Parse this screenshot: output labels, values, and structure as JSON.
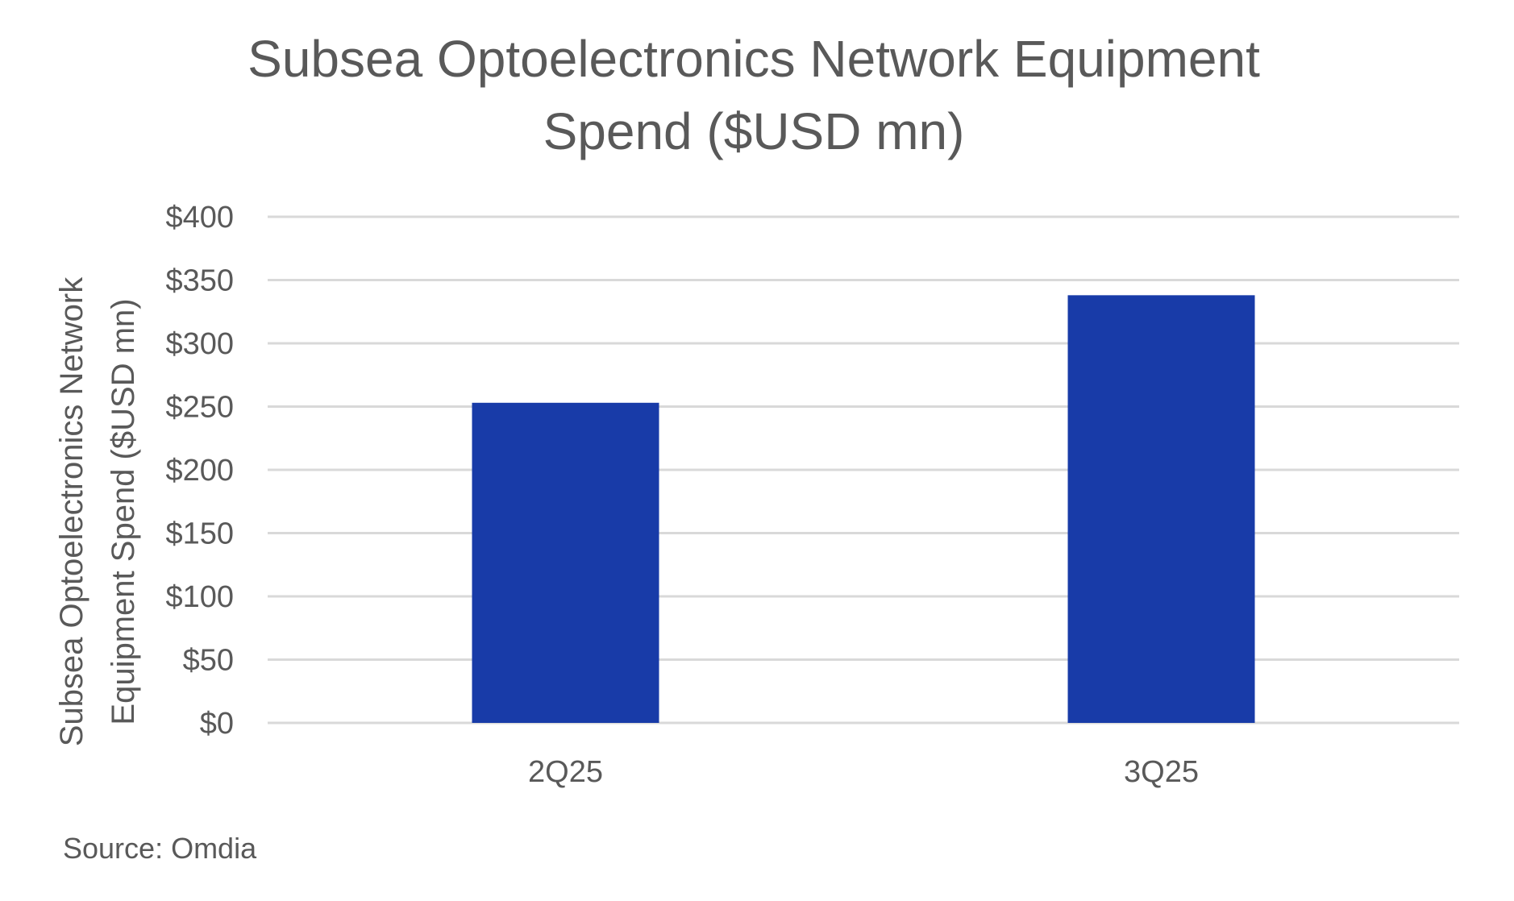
{
  "colors": {
    "bar": "#183BA8",
    "text": "#595959",
    "grid": "#d9d9d9",
    "background": "#ffffff"
  },
  "chart_data": {
    "type": "bar",
    "title_lines": [
      "Subsea Optoelectronics Network Equipment",
      "Spend ($USD mn)"
    ],
    "ylabel_lines": [
      "Subsea Optoelectronics Network",
      "Equipment Spend ($USD mn)"
    ],
    "xlabel": "",
    "categories": [
      "2Q25",
      "3Q25"
    ],
    "values": [
      253,
      338
    ],
    "ylim": [
      0,
      400
    ],
    "yticks": [
      0,
      50,
      100,
      150,
      200,
      250,
      300,
      350,
      400
    ],
    "ytick_labels": [
      "$0",
      "$50",
      "$100",
      "$150",
      "$200",
      "$250",
      "$300",
      "$350",
      "$400"
    ],
    "grid": true,
    "legend": "none",
    "source": "Source:  Omdia"
  }
}
